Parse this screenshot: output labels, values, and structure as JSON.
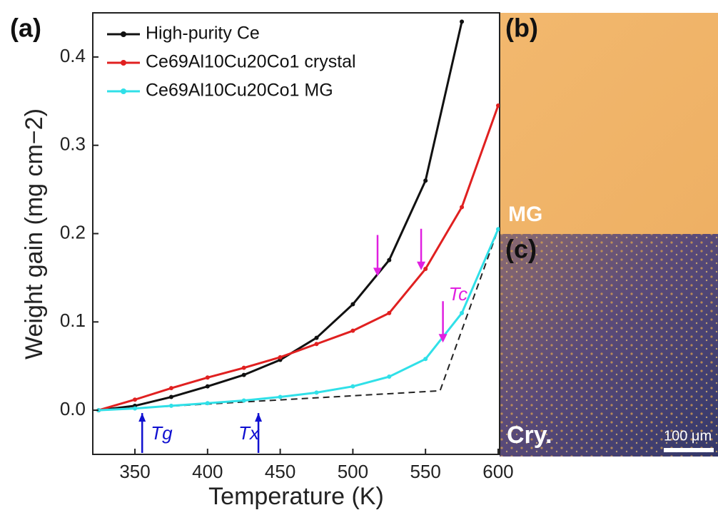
{
  "chart_data": {
    "type": "line",
    "panel_labels": [
      "(a)",
      "(b)",
      "(c)"
    ],
    "xlabel": "Temperature (K)",
    "ylabel": "Weight gain (mg cm−2)",
    "x": [
      325,
      350,
      375,
      400,
      425,
      450,
      475,
      500,
      525,
      550,
      575,
      600
    ],
    "series": [
      {
        "name": "High-purity Ce",
        "color": "#111111",
        "values": [
          0,
          0.005,
          0.015,
          0.027,
          0.04,
          0.057,
          0.082,
          0.12,
          0.17,
          0.26,
          0.44,
          null
        ]
      },
      {
        "name": "Ce69Al10Cu20Co1 crystal",
        "color": "#e02020",
        "values": [
          0,
          0.012,
          0.025,
          0.037,
          0.048,
          0.06,
          0.075,
          0.09,
          0.11,
          0.16,
          0.23,
          0.345
        ]
      },
      {
        "name": "Ce69Al10Cu20Co1 MG",
        "color": "#30e0e8",
        "values": [
          0,
          0.002,
          0.005,
          0.008,
          0.011,
          0.015,
          0.02,
          0.027,
          0.038,
          0.058,
          0.11,
          0.205
        ]
      }
    ],
    "guide": {
      "x": [
        325,
        560,
        600
      ],
      "values": [
        0,
        0.022,
        0.205
      ]
    },
    "xlim": [
      321,
      601
    ],
    "ylim": [
      -0.05,
      0.45
    ],
    "xticks": [
      350,
      400,
      450,
      500,
      550,
      600
    ],
    "yticks": [
      {
        "value": 0,
        "label": "0.0"
      },
      0.1,
      0.2,
      0.3,
      0.4
    ],
    "magenta_arrows": [
      {
        "x": 517,
        "y": 0.15
      },
      {
        "x": 547,
        "y": 0.157
      },
      {
        "x": 562,
        "y": 0.075
      }
    ],
    "annotations": [
      {
        "text": "Tg",
        "x": 355,
        "color": "#1010d0"
      },
      {
        "text": "Tx",
        "x": 435,
        "color": "#1010d0"
      },
      {
        "text": "Tc",
        "x": 562,
        "color": "#e020e0"
      }
    ],
    "image_labels": [
      "MG",
      "Cry.",
      "100 μm"
    ]
  }
}
